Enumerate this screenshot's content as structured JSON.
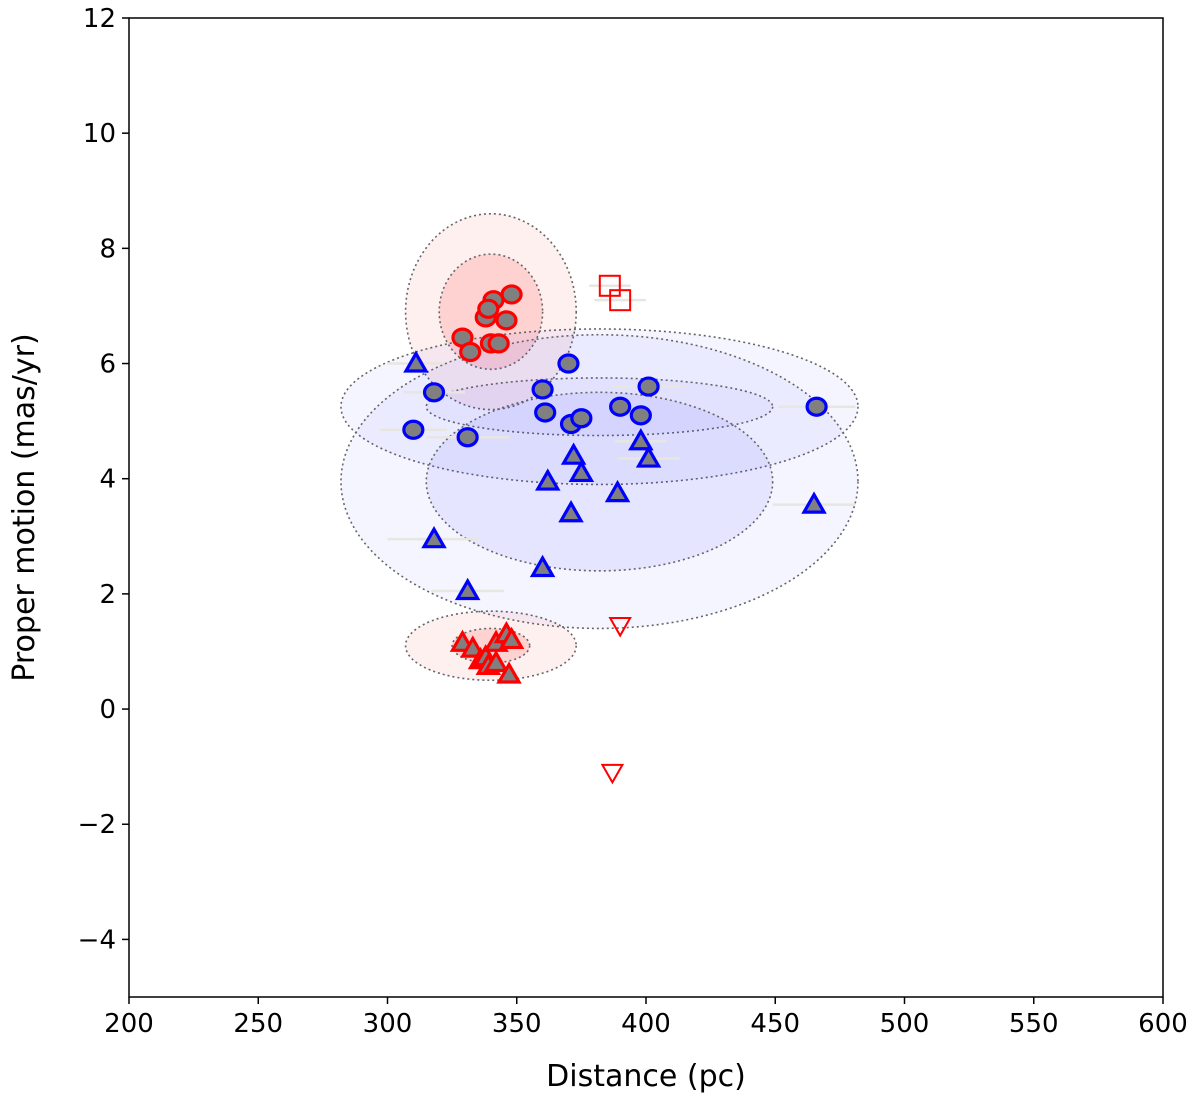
{
  "chart_data": {
    "type": "scatter",
    "title": "",
    "xlabel": "Distance (pc)",
    "ylabel": "Proper motion (mas/yr)",
    "xlim": [
      200,
      600
    ],
    "ylim": [
      -5,
      12
    ],
    "xticks": [
      200,
      250,
      300,
      350,
      400,
      450,
      500,
      550,
      600
    ],
    "yticks": [
      -4,
      -2,
      0,
      2,
      4,
      6,
      8,
      10,
      12
    ],
    "grid": false,
    "legend": "none",
    "colors": {
      "red": "#ff0000",
      "blue": "#0000ff",
      "gray_fill": "#808080",
      "red_ellipse": "#ff0000",
      "blue_ellipse": "#3333ff",
      "ellipse_outline": "#666666"
    },
    "ellipses": [
      {
        "group": "red-upper",
        "cx": 340,
        "cy": 6.9,
        "rx": 33,
        "ry": 1.7,
        "opacity": 0.06
      },
      {
        "group": "red-upper",
        "cx": 340,
        "cy": 6.9,
        "rx": 20,
        "ry": 1.0,
        "opacity": 0.12
      },
      {
        "group": "red-lower",
        "cx": 340,
        "cy": 1.1,
        "rx": 33,
        "ry": 0.6,
        "opacity": 0.06
      },
      {
        "group": "red-lower",
        "cx": 340,
        "cy": 1.1,
        "rx": 15,
        "ry": 0.3,
        "opacity": 0.12
      },
      {
        "group": "blue-circles",
        "cx": 382,
        "cy": 5.25,
        "rx": 100,
        "ry": 1.35,
        "opacity": 0.05
      },
      {
        "group": "blue-circles",
        "cx": 382,
        "cy": 5.25,
        "rx": 67,
        "ry": 0.5,
        "opacity": 0.05
      },
      {
        "group": "blue-triangles",
        "cx": 382,
        "cy": 3.95,
        "rx": 100,
        "ry": 2.55,
        "opacity": 0.05
      },
      {
        "group": "blue-triangles",
        "cx": 382,
        "cy": 3.95,
        "rx": 67,
        "ry": 1.55,
        "opacity": 0.08
      }
    ],
    "series": [
      {
        "marker": "circle",
        "edge": "red",
        "fill": "gray",
        "points": [
          [
            338,
            6.8
          ],
          [
            341,
            7.1
          ],
          [
            348,
            7.2
          ],
          [
            339,
            6.95
          ],
          [
            329,
            6.45
          ],
          [
            332,
            6.2
          ],
          [
            340,
            6.35
          ],
          [
            343,
            6.35
          ],
          [
            346,
            6.75
          ]
        ]
      },
      {
        "marker": "triangle-up",
        "edge": "red",
        "fill": "gray",
        "points": [
          [
            329,
            1.15
          ],
          [
            333,
            1.05
          ],
          [
            336,
            0.85
          ],
          [
            338,
            0.9
          ],
          [
            339,
            0.75
          ],
          [
            342,
            0.8
          ],
          [
            342,
            1.15
          ],
          [
            346,
            1.3
          ],
          [
            348,
            1.2
          ],
          [
            347,
            0.6
          ]
        ]
      },
      {
        "marker": "square",
        "edge": "red",
        "fill": "none",
        "points": [
          [
            386,
            7.35
          ],
          [
            390,
            7.1
          ]
        ],
        "xerr": [
          8,
          10
        ]
      },
      {
        "marker": "triangle-down",
        "edge": "red",
        "fill": "none",
        "points": [
          [
            390,
            1.45
          ],
          [
            387,
            -1.1
          ]
        ]
      },
      {
        "marker": "circle",
        "edge": "blue",
        "fill": "gray",
        "points": [
          [
            310,
            4.85
          ],
          [
            318,
            5.5
          ],
          [
            331,
            4.72
          ],
          [
            360,
            5.55
          ],
          [
            361,
            5.15
          ],
          [
            370,
            6.0
          ],
          [
            371,
            4.95
          ],
          [
            375,
            5.05
          ],
          [
            390,
            5.25
          ],
          [
            398,
            5.1
          ],
          [
            401,
            5.6
          ],
          [
            466,
            5.25
          ]
        ],
        "xerr": [
          13,
          12,
          16,
          0,
          0,
          0,
          0,
          0,
          0,
          0,
          14,
          15
        ]
      },
      {
        "marker": "triangle-up",
        "edge": "blue",
        "fill": "gray",
        "points": [
          [
            311,
            6.0
          ],
          [
            318,
            2.95
          ],
          [
            331,
            2.05
          ],
          [
            360,
            2.45
          ],
          [
            362,
            3.95
          ],
          [
            371,
            3.4
          ],
          [
            372,
            4.4
          ],
          [
            375,
            4.1
          ],
          [
            389,
            3.75
          ],
          [
            398,
            4.65
          ],
          [
            401,
            4.35
          ],
          [
            465,
            3.55
          ]
        ],
        "xerr": [
          11,
          18,
          14,
          0,
          0,
          0,
          0,
          0,
          0,
          10,
          12,
          16
        ]
      }
    ]
  }
}
